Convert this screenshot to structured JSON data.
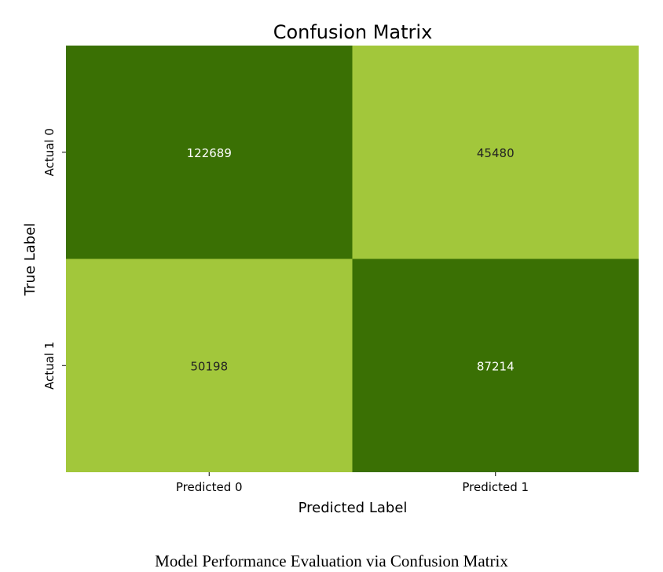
{
  "chart_data": {
    "type": "heatmap",
    "title": "Confusion Matrix",
    "xlabel": "Predicted Label",
    "ylabel": "True Label",
    "x_categories": [
      "Predicted 0",
      "Predicted 1"
    ],
    "y_categories": [
      "Actual 0",
      "Actual 1"
    ],
    "values": [
      [
        122689,
        45480
      ],
      [
        50198,
        87214
      ]
    ],
    "colorbar": false,
    "colors": {
      "high": "#3a7004",
      "low": "#a2c73b",
      "annotation_on_high": "#ffffff",
      "annotation_on_low": "#222222"
    }
  },
  "caption": "Model Performance Evaluation via Confusion Matrix"
}
